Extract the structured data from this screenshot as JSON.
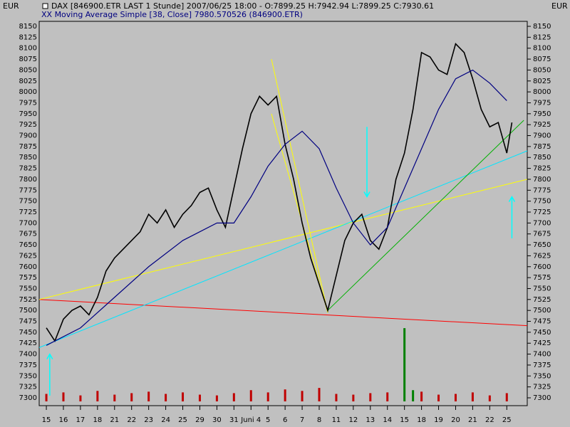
{
  "chart_data": {
    "type": "line",
    "title": "DAX [846900.ETR LAST 1 Stunde] 2007/06/25 18:00 - O:7899.25 H:7942.94 L:7899.25 C:7930.61",
    "subtitle": "XX Moving Average Simple [38, Close] 7980.570526 (846900.ETR)",
    "currency_left": "EUR",
    "currency_right": "EUR",
    "ylim": [
      7300,
      8150
    ],
    "xlim": [
      -0.42,
      28.2
    ],
    "yticks": [
      7300,
      7325,
      7350,
      7375,
      7400,
      7425,
      7450,
      7475,
      7500,
      7525,
      7550,
      7575,
      7600,
      7625,
      7650,
      7675,
      7700,
      7725,
      7750,
      7775,
      7800,
      7825,
      7850,
      7875,
      7900,
      7925,
      7950,
      7975,
      8000,
      8025,
      8050,
      8075,
      8100,
      8125,
      8150
    ],
    "xticks": [
      {
        "value": 0,
        "label": "15"
      },
      {
        "value": 1,
        "label": "16"
      },
      {
        "value": 2,
        "label": "17"
      },
      {
        "value": 3,
        "label": "18"
      },
      {
        "value": 4,
        "label": "21"
      },
      {
        "value": 5,
        "label": "22"
      },
      {
        "value": 6,
        "label": "23"
      },
      {
        "value": 7,
        "label": "24"
      },
      {
        "value": 8,
        "label": "25"
      },
      {
        "value": 9,
        "label": "29"
      },
      {
        "value": 10,
        "label": "30"
      },
      {
        "value": 11,
        "label": "31"
      },
      {
        "value": 12,
        "label": "Juni 4"
      },
      {
        "value": 13,
        "label": "5"
      },
      {
        "value": 14,
        "label": "6"
      },
      {
        "value": 15,
        "label": "7"
      },
      {
        "value": 16,
        "label": "8"
      },
      {
        "value": 17,
        "label": "11"
      },
      {
        "value": 18,
        "label": "12"
      },
      {
        "value": 19,
        "label": "13"
      },
      {
        "value": 20,
        "label": "14"
      },
      {
        "value": 21,
        "label": "15"
      },
      {
        "value": 22,
        "label": "18"
      },
      {
        "value": 23,
        "label": "19"
      },
      {
        "value": 24,
        "label": "20"
      },
      {
        "value": 25,
        "label": "21"
      },
      {
        "value": 26,
        "label": "22"
      },
      {
        "value": 27,
        "label": "25"
      }
    ],
    "series": [
      {
        "color": "#000000",
        "width": 1.6,
        "x": [
          0,
          0.5,
          1,
          1.5,
          2,
          2.5,
          3,
          3.5,
          4,
          4.5,
          5,
          5.5,
          6,
          6.5,
          7,
          7.5,
          8,
          8.5,
          9,
          9.5,
          10,
          10.5,
          11,
          11.5,
          12,
          12.5,
          13,
          13.5,
          14,
          14.5,
          15,
          15.5,
          16,
          16.5,
          17,
          17.5,
          18,
          18.5,
          19,
          19.5,
          20,
          20.5,
          21,
          21.5,
          22,
          22.5,
          23,
          23.5,
          24,
          24.5,
          25,
          25.5,
          26,
          26.5,
          27,
          27.3
        ],
        "values": [
          7460,
          7430,
          7480,
          7500,
          7510,
          7490,
          7530,
          7590,
          7620,
          7640,
          7660,
          7680,
          7720,
          7700,
          7730,
          7690,
          7720,
          7740,
          7770,
          7780,
          7730,
          7690,
          7780,
          7870,
          7950,
          7990,
          7970,
          7990,
          7880,
          7800,
          7700,
          7620,
          7560,
          7500,
          7580,
          7660,
          7700,
          7720,
          7660,
          7640,
          7690,
          7800,
          7860,
          7960,
          8090,
          8080,
          8050,
          8040,
          8110,
          8090,
          8030,
          7960,
          7920,
          7930,
          7860,
          7930
        ]
      },
      {
        "color": "#000080",
        "width": 1.2,
        "x": [
          0,
          2,
          4,
          6,
          8,
          10,
          11,
          12,
          13,
          14,
          15,
          16,
          17,
          18,
          19,
          20,
          21,
          22,
          23,
          24,
          25,
          26,
          27
        ],
        "values": [
          7420,
          7460,
          7530,
          7600,
          7660,
          7700,
          7700,
          7760,
          7830,
          7880,
          7910,
          7870,
          7780,
          7700,
          7650,
          7690,
          7780,
          7870,
          7960,
          8030,
          8050,
          8020,
          7980
        ]
      }
    ],
    "lines": [
      {
        "color": "#ff0000",
        "x": [
          -0.42,
          28.2
        ],
        "values": [
          7525,
          7465
        ]
      },
      {
        "color": "#ffff00",
        "x": [
          -0.42,
          28.2
        ],
        "values": [
          7525,
          7800
        ]
      },
      {
        "color": "#00e5ff",
        "x": [
          -0.42,
          28.2
        ],
        "values": [
          7415,
          7865
        ]
      },
      {
        "color": "#ffff00",
        "x": [
          13.2,
          16.5
        ],
        "values": [
          8075,
          7495
        ]
      },
      {
        "color": "#ffff00",
        "x": [
          13.2,
          16.5
        ],
        "values": [
          7950,
          7495
        ]
      },
      {
        "color": "#00b000",
        "x": [
          16.5,
          28.0
        ],
        "values": [
          7500,
          7935
        ]
      }
    ],
    "arrows": [
      {
        "color": "#00ffff",
        "x": 0.2,
        "from": 7305,
        "to": 7400
      },
      {
        "color": "#00ffff",
        "x": 18.8,
        "from": 7920,
        "to": 7760
      },
      {
        "color": "#00ffff",
        "x": 27.3,
        "from": 7665,
        "to": 7760
      }
    ],
    "volume": [
      {
        "color": "#c00000",
        "x": [
          0,
          1,
          2,
          3,
          4,
          5,
          6,
          7,
          8,
          9,
          10,
          11,
          12,
          13,
          14,
          15,
          16,
          17,
          18,
          19,
          20,
          22,
          23,
          24,
          25,
          26,
          27
        ],
        "values": [
          10,
          12,
          8,
          14,
          9,
          11,
          13,
          10,
          12,
          9,
          8,
          11,
          15,
          12,
          16,
          14,
          18,
          10,
          9,
          11,
          12,
          13,
          9,
          10,
          12,
          8,
          11
        ]
      },
      {
        "color": "#008000",
        "x": [
          21,
          21.5
        ],
        "values": [
          98,
          15
        ]
      }
    ],
    "vlim": [
      0,
      100
    ]
  }
}
